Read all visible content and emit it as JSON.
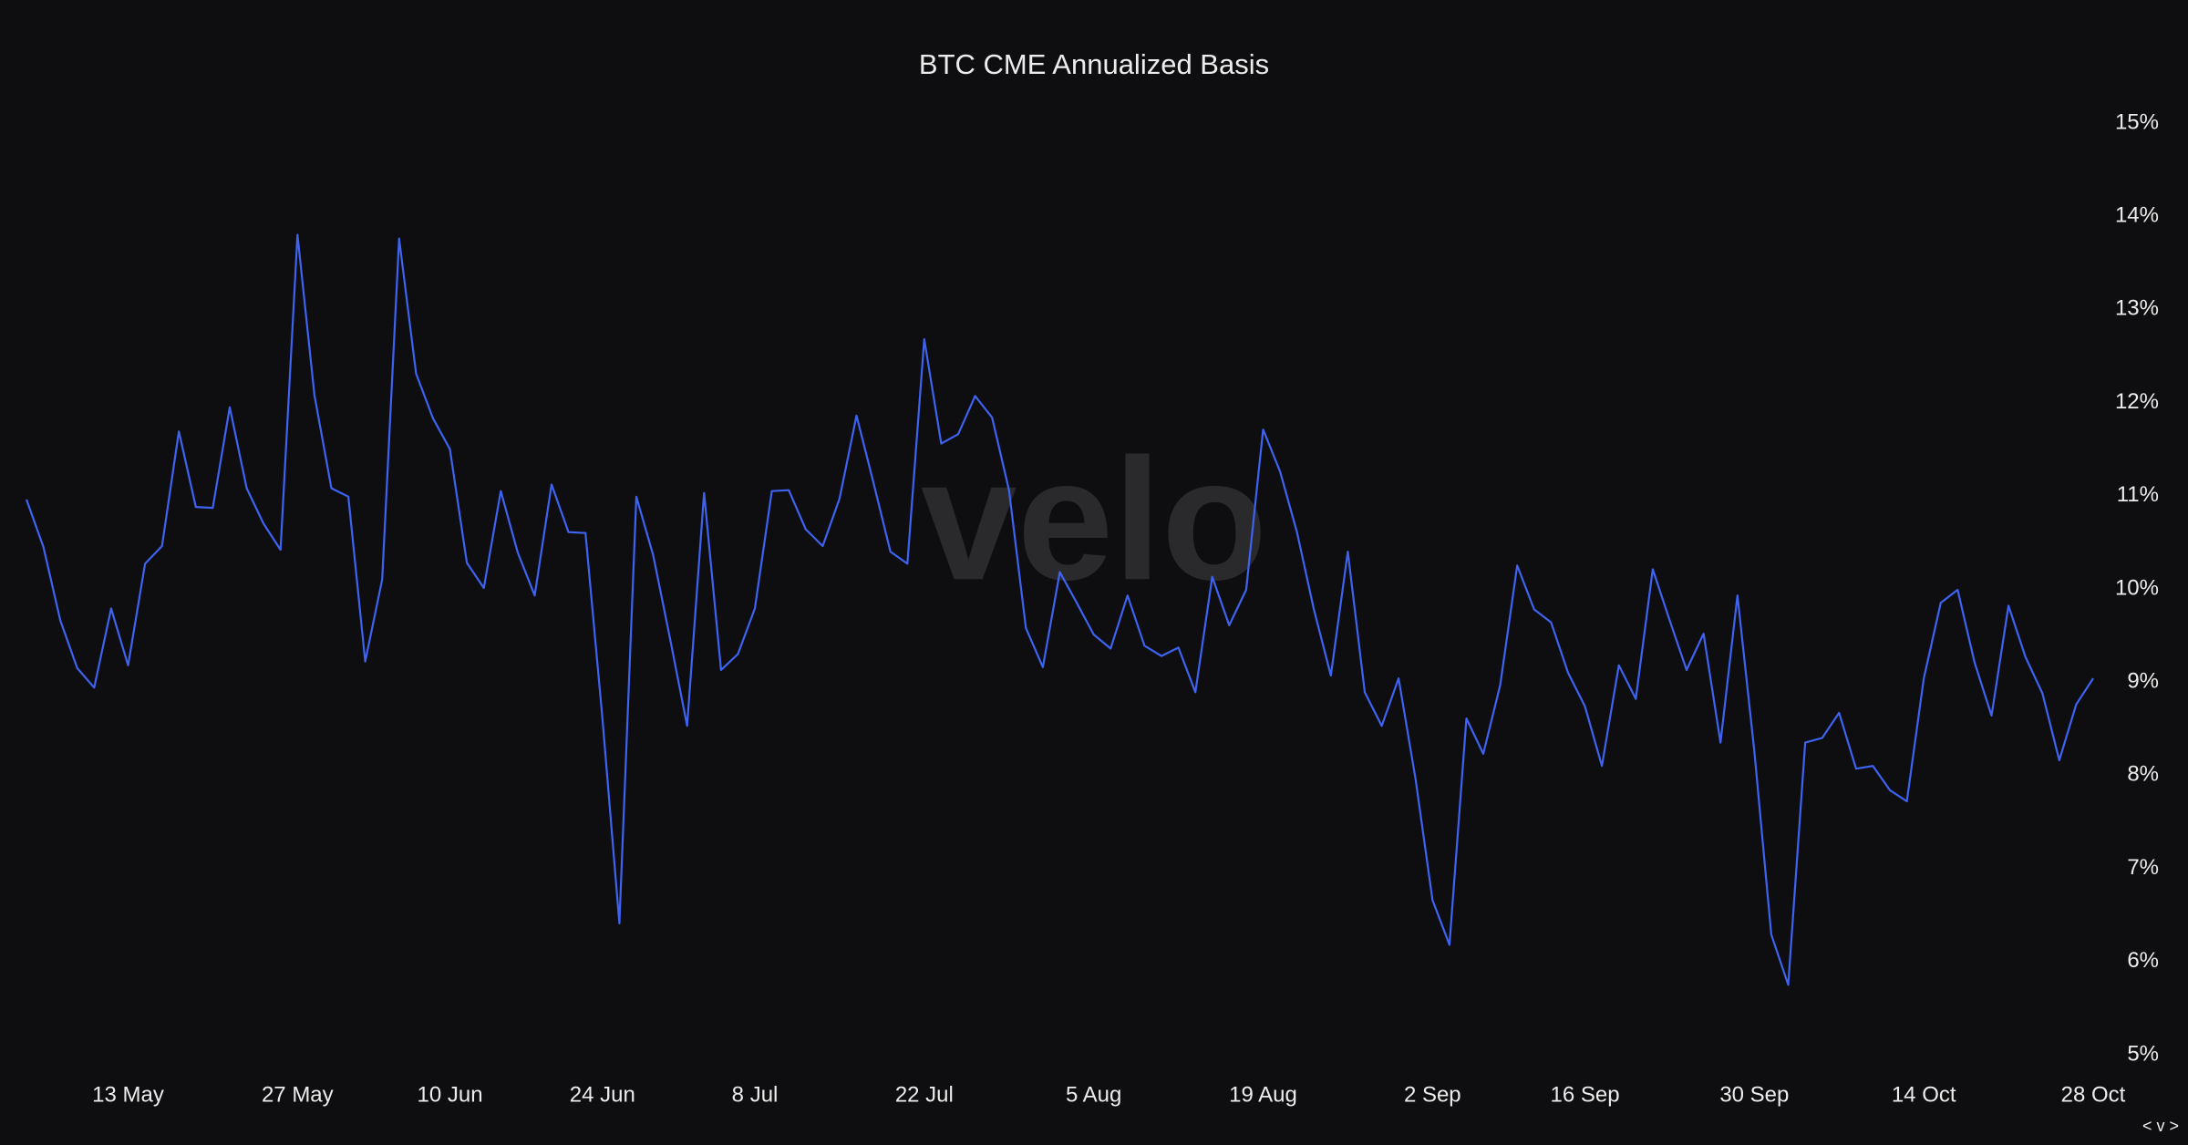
{
  "chart_data": {
    "type": "line",
    "title": "BTC CME Annualized Basis",
    "watermark": "velo",
    "categories": [
      null,
      null,
      null,
      null,
      null,
      null,
      "13 May",
      null,
      null,
      null,
      null,
      null,
      null,
      null,
      null,
      null,
      "27 May",
      null,
      null,
      null,
      null,
      null,
      null,
      null,
      null,
      "10 Jun",
      null,
      null,
      null,
      null,
      null,
      null,
      null,
      null,
      "24 Jun",
      null,
      null,
      null,
      null,
      null,
      null,
      null,
      null,
      "8 Jul",
      null,
      null,
      null,
      null,
      null,
      null,
      null,
      null,
      null,
      "22 Jul",
      null,
      null,
      null,
      null,
      null,
      null,
      null,
      null,
      null,
      "5 Aug",
      null,
      null,
      null,
      null,
      null,
      null,
      null,
      null,
      null,
      "19 Aug",
      null,
      null,
      null,
      null,
      null,
      null,
      null,
      null,
      null,
      "2 Sep",
      null,
      null,
      null,
      null,
      null,
      null,
      null,
      null,
      "16 Sep",
      null,
      null,
      null,
      null,
      null,
      null,
      null,
      null,
      null,
      "30 Sep",
      null,
      null,
      null,
      null,
      null,
      null,
      null,
      null,
      null,
      "14 Oct",
      null,
      null,
      null,
      null,
      null,
      null,
      null,
      null,
      null,
      "28 Oct"
    ],
    "series": [
      {
        "color": "#3d63f0",
        "values": [
          10.96,
          10.45,
          9.66,
          9.15,
          8.94,
          9.79,
          9.18,
          10.27,
          10.46,
          11.69,
          10.88,
          10.87,
          11.95,
          11.08,
          10.7,
          10.42,
          13.8,
          12.08,
          11.08,
          10.99,
          9.22,
          10.1,
          13.76,
          12.31,
          11.83,
          11.5,
          10.28,
          10.01,
          11.05,
          10.39,
          9.93,
          11.12,
          10.61,
          10.6,
          8.61,
          6.41,
          10.99,
          10.36,
          9.46,
          8.53,
          11.03,
          9.13,
          9.3,
          9.79,
          11.05,
          11.06,
          10.64,
          10.46,
          10.97,
          11.86,
          11.14,
          10.4,
          10.27,
          12.68,
          11.56,
          11.66,
          12.07,
          11.84,
          11.06,
          9.58,
          9.16,
          10.18,
          9.85,
          9.51,
          9.36,
          9.93,
          9.39,
          9.28,
          9.37,
          8.89,
          10.13,
          9.61,
          9.99,
          11.71,
          11.26,
          10.61,
          9.78,
          9.07,
          10.4,
          8.89,
          8.53,
          9.04,
          7.96,
          6.66,
          6.18,
          8.61,
          8.23,
          8.97,
          10.25,
          9.78,
          9.64,
          9.1,
          8.74,
          8.1,
          9.18,
          8.82,
          10.21,
          9.66,
          9.13,
          9.52,
          8.35,
          9.93,
          8.25,
          6.29,
          5.75,
          8.35,
          8.4,
          8.67,
          8.07,
          8.1,
          7.84,
          7.72,
          9.04,
          9.85,
          9.99,
          9.21,
          8.64,
          9.82,
          9.27,
          8.88,
          8.16,
          8.76,
          9.04
        ]
      }
    ],
    "ylim": [
      5,
      15
    ],
    "yticks": [
      {
        "value": 5,
        "label": "5%"
      },
      {
        "value": 6,
        "label": "6%"
      },
      {
        "value": 7,
        "label": "7%"
      },
      {
        "value": 8,
        "label": "8%"
      },
      {
        "value": 9,
        "label": "9%"
      },
      {
        "value": 10,
        "label": "10%"
      },
      {
        "value": 11,
        "label": "11%"
      },
      {
        "value": 12,
        "label": "12%"
      },
      {
        "value": 13,
        "label": "13%"
      },
      {
        "value": 14,
        "label": "14%"
      },
      {
        "value": 15,
        "label": "15%"
      }
    ],
    "grid": false
  },
  "footer_control": "< v >"
}
